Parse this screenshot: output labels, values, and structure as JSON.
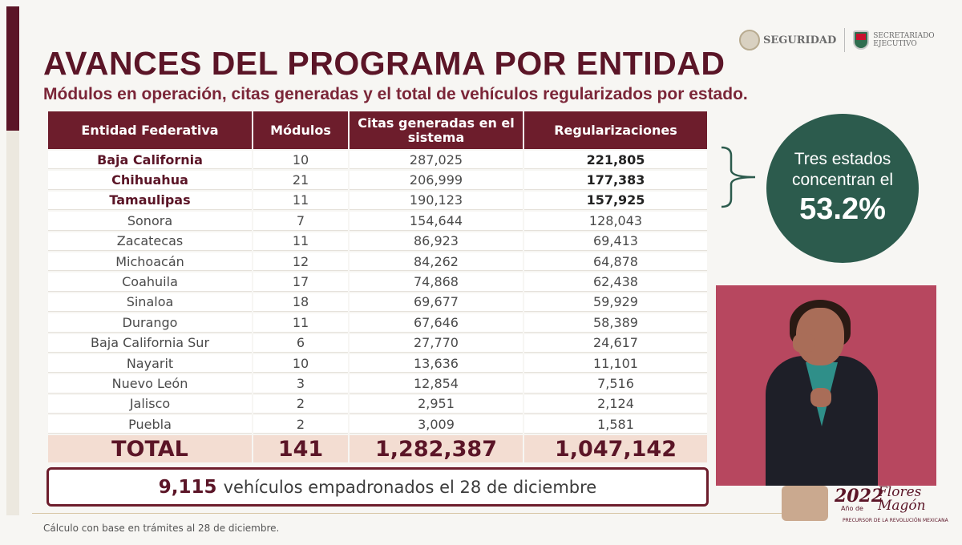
{
  "header": {
    "title": "AVANCES DEL PROGRAMA POR ENTIDAD",
    "subtitle": "Módulos en operación, citas generadas y el total de vehículos regularizados por estado.",
    "logo_seguridad": "SEGURIDAD",
    "logo_secretariado_line1": "SECRETARIADO",
    "logo_secretariado_line2": "EJECUTIVO"
  },
  "table": {
    "headers": [
      "Entidad Federativa",
      "Módulos",
      "Citas generadas en el sistema",
      "Regularizaciones"
    ],
    "rows": [
      {
        "entidad": "Baja California",
        "modulos": "10",
        "citas": "287,025",
        "regularizaciones": "221,805",
        "highlight": true
      },
      {
        "entidad": "Chihuahua",
        "modulos": "21",
        "citas": "206,999",
        "regularizaciones": "177,383",
        "highlight": true
      },
      {
        "entidad": "Tamaulipas",
        "modulos": "11",
        "citas": "190,123",
        "regularizaciones": "157,925",
        "highlight": true
      },
      {
        "entidad": "Sonora",
        "modulos": "7",
        "citas": "154,644",
        "regularizaciones": "128,043",
        "highlight": false
      },
      {
        "entidad": "Zacatecas",
        "modulos": "11",
        "citas": "86,923",
        "regularizaciones": "69,413",
        "highlight": false
      },
      {
        "entidad": "Michoacán",
        "modulos": "12",
        "citas": "84,262",
        "regularizaciones": "64,878",
        "highlight": false
      },
      {
        "entidad": "Coahuila",
        "modulos": "17",
        "citas": "74,868",
        "regularizaciones": "62,438",
        "highlight": false
      },
      {
        "entidad": "Sinaloa",
        "modulos": "18",
        "citas": "69,677",
        "regularizaciones": "59,929",
        "highlight": false
      },
      {
        "entidad": "Durango",
        "modulos": "11",
        "citas": "67,646",
        "regularizaciones": "58,389",
        "highlight": false
      },
      {
        "entidad": "Baja California Sur",
        "modulos": "6",
        "citas": "27,770",
        "regularizaciones": "24,617",
        "highlight": false
      },
      {
        "entidad": "Nayarit",
        "modulos": "10",
        "citas": "13,636",
        "regularizaciones": "11,101",
        "highlight": false
      },
      {
        "entidad": "Nuevo León",
        "modulos": "3",
        "citas": "12,854",
        "regularizaciones": "7,516",
        "highlight": false
      },
      {
        "entidad": "Jalisco",
        "modulos": "2",
        "citas": "2,951",
        "regularizaciones": "2,124",
        "highlight": false
      },
      {
        "entidad": "Puebla",
        "modulos": "2",
        "citas": "3,009",
        "regularizaciones": "1,581",
        "highlight": false
      }
    ],
    "total": {
      "label": "TOTAL",
      "modulos": "141",
      "citas": "1,282,387",
      "regularizaciones": "1,047,142"
    }
  },
  "callout": {
    "text": "Tres estados concentran el",
    "percent": "53.2%",
    "color": "#2c5b4d"
  },
  "banner": {
    "number": "9,115",
    "text": "vehículos empadronados el 28 de diciembre"
  },
  "footnote": "Cálculo con base en trámites al 28 de diciembre.",
  "anio": {
    "year": "2022",
    "de": "Año de",
    "name_line1": "Flores",
    "name_line2": "Magón",
    "sub": "PRECURSOR DE LA REVOLUCIÓN MEXICANA"
  },
  "colors": {
    "brand": "#5b1527",
    "header_bg": "#6d1d2c",
    "total_bg": "#f3ddd2",
    "video_bg": "#b7475f"
  }
}
